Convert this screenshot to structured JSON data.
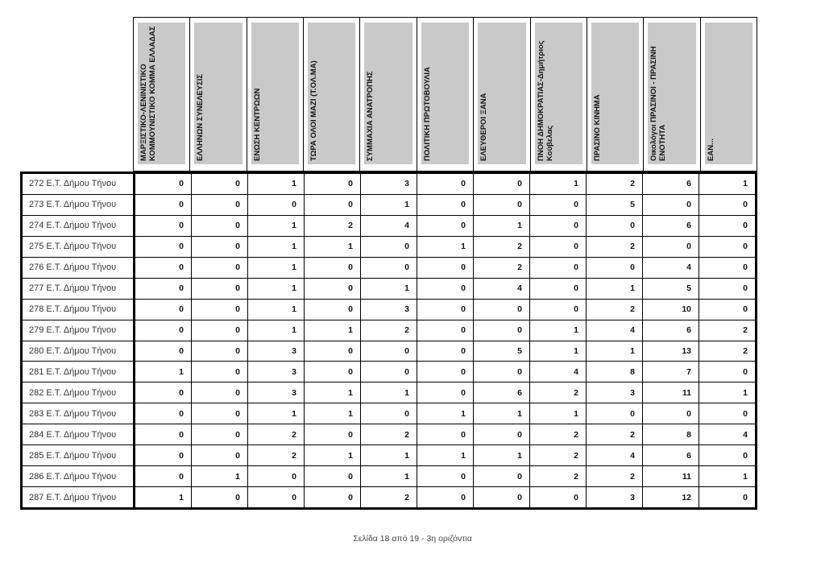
{
  "page": {
    "footer_text": "Σελίδα 18 από 19 - 3η οριζόντια"
  },
  "colors": {
    "header_fill": "#c9c9c9",
    "border": "#000000"
  },
  "table": {
    "columns": [
      "ΜΑΡΞΙΣΤΙΚΟ-ΛΕΝΙΝΙΣΤΙΚΟ ΚΟΜΜΟΥΝΙΣΤΙΚΟ ΚΟΜΜΑ ΕΛΛΑΔΑΣ",
      "ΕΛΛΗΝΩΝ ΣΥΝΕΛΕΥΣΙΣ",
      "ΕΝΩΣΗ ΚΕΝΤΡΩΩΝ",
      "ΤΩΡΑ ΟΛΟΙ ΜΑΖΙ (Τ.ΟΛ.ΜΑ)",
      "ΣΥΜΜΑΧΙΑ ΑΝΑΤΡΟΠΗΣ",
      "ΠΟΛΙΤΙΚΗ ΠΡΩΤΟΒΟΥΛΙΑ",
      "ΕΛΕΥΘΕΡΟΙ ΞΑΝΑ",
      "ΠΝΟΗ ΔΗΜΟΚΡΑΤΙΑΣ-Δημήτριος Κούβελας",
      "ΠΡΑΣΙΝΟ ΚΙΝΗΜΑ",
      "Οικολόγοι ΠΡΑΣΙΝΟΙ - ΠΡΑΣΙΝΗ ΕΝΟΤΗΤΑ",
      "ΕΑΝ..."
    ],
    "rows": [
      {
        "label": "272 Ε.Τ. Δήμου Τήνου",
        "values": [
          0,
          0,
          1,
          0,
          3,
          0,
          0,
          1,
          2,
          6,
          1
        ]
      },
      {
        "label": "273 Ε.Τ. Δήμου Τήνου",
        "values": [
          0,
          0,
          0,
          0,
          1,
          0,
          0,
          0,
          5,
          0,
          0
        ]
      },
      {
        "label": "274 Ε.Τ. Δήμου Τήνου",
        "values": [
          0,
          0,
          1,
          2,
          4,
          0,
          1,
          0,
          0,
          6,
          0
        ]
      },
      {
        "label": "275 Ε.Τ. Δήμου Τήνου",
        "values": [
          0,
          0,
          1,
          1,
          0,
          1,
          2,
          0,
          2,
          0,
          0
        ]
      },
      {
        "label": "276 Ε.Τ. Δήμου Τήνου",
        "values": [
          0,
          0,
          1,
          0,
          0,
          0,
          2,
          0,
          0,
          4,
          0
        ]
      },
      {
        "label": "277 Ε.Τ. Δήμου Τήνου",
        "values": [
          0,
          0,
          1,
          0,
          1,
          0,
          4,
          0,
          1,
          5,
          0
        ]
      },
      {
        "label": "278 Ε.Τ. Δήμου Τήνου",
        "values": [
          0,
          0,
          1,
          0,
          3,
          0,
          0,
          0,
          2,
          10,
          0
        ]
      },
      {
        "label": "279 Ε.Τ. Δήμου Τήνου",
        "values": [
          0,
          0,
          1,
          1,
          2,
          0,
          0,
          1,
          4,
          6,
          2
        ]
      },
      {
        "label": "280 Ε.Τ. Δήμου Τήνου",
        "values": [
          0,
          0,
          3,
          0,
          0,
          0,
          5,
          1,
          1,
          13,
          2
        ]
      },
      {
        "label": "281 Ε.Τ. Δήμου Τήνου",
        "values": [
          1,
          0,
          3,
          0,
          0,
          0,
          0,
          4,
          8,
          7,
          0
        ]
      },
      {
        "label": "282 Ε.Τ. Δήμου Τήνου",
        "values": [
          0,
          0,
          3,
          1,
          1,
          0,
          6,
          2,
          3,
          11,
          1
        ]
      },
      {
        "label": "283 Ε.Τ. Δήμου Τήνου",
        "values": [
          0,
          0,
          1,
          1,
          0,
          1,
          1,
          1,
          0,
          0,
          0
        ]
      },
      {
        "label": "284 Ε.Τ. Δήμου Τήνου",
        "values": [
          0,
          0,
          2,
          0,
          2,
          0,
          0,
          2,
          2,
          8,
          4
        ]
      },
      {
        "label": "285 Ε.Τ. Δήμου Τήνου",
        "values": [
          0,
          0,
          2,
          1,
          1,
          1,
          1,
          2,
          4,
          6,
          0
        ]
      },
      {
        "label": "286 Ε.Τ. Δήμου Τήνου",
        "values": [
          0,
          1,
          0,
          0,
          1,
          0,
          0,
          2,
          2,
          11,
          1
        ]
      },
      {
        "label": "287 Ε.Τ. Δήμου Τήνου",
        "values": [
          1,
          0,
          0,
          0,
          2,
          0,
          0,
          0,
          3,
          12,
          0
        ]
      }
    ]
  }
}
